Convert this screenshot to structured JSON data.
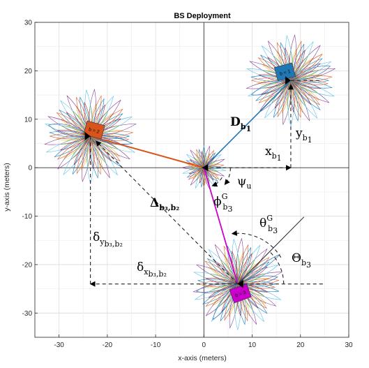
{
  "chart_data": {
    "type": "scatter",
    "title": "BS Deployment",
    "xlabel": "x-axis (meters)",
    "ylabel": "y-axis (meters)",
    "xlim": [
      -35,
      30
    ],
    "ylim": [
      -35,
      30
    ],
    "xticks": [
      -30,
      -20,
      -10,
      0,
      10,
      20,
      30
    ],
    "yticks": [
      -30,
      -20,
      -10,
      0,
      10,
      20,
      30
    ],
    "grid": true,
    "base_stations": [
      {
        "label": "b = 1",
        "x": 18,
        "y": 18,
        "color": "#1f77b4"
      },
      {
        "label": "b = 2",
        "x": -23.5,
        "y": 6.5,
        "color": "#d9541a"
      },
      {
        "label": "b = 3",
        "x": 7,
        "y": -24,
        "color": "#cc00cc"
      }
    ],
    "user": {
      "x": 0,
      "y": 0
    },
    "annotations": {
      "D": {
        "main": "D",
        "sub": "b",
        "subsub": "1"
      },
      "x_b1": {
        "main": "x",
        "sub": "b",
        "subsub": "1"
      },
      "y_b1": {
        "main": "y",
        "sub": "b",
        "subsub": "1"
      },
      "psi_u": {
        "main": "ψ",
        "sub": "u"
      },
      "phi": {
        "main": "ϕ",
        "sup": "G",
        "sub": "b",
        "subsub": "3"
      },
      "delta_label": {
        "main": "Δ",
        "sub": "b₃,b₂"
      },
      "theta_G": {
        "main": "θ",
        "sup": "G",
        "sub": "b",
        "subsub": "3"
      },
      "Theta": {
        "main": "Θ",
        "sub": "b",
        "subsub": "3"
      },
      "delta_y": {
        "main": "δ",
        "sub": "y",
        "subsub": "b₃,b₂"
      },
      "delta_x": {
        "main": "δ",
        "sub": "x",
        "subsub": "b₃,b₂"
      }
    }
  }
}
